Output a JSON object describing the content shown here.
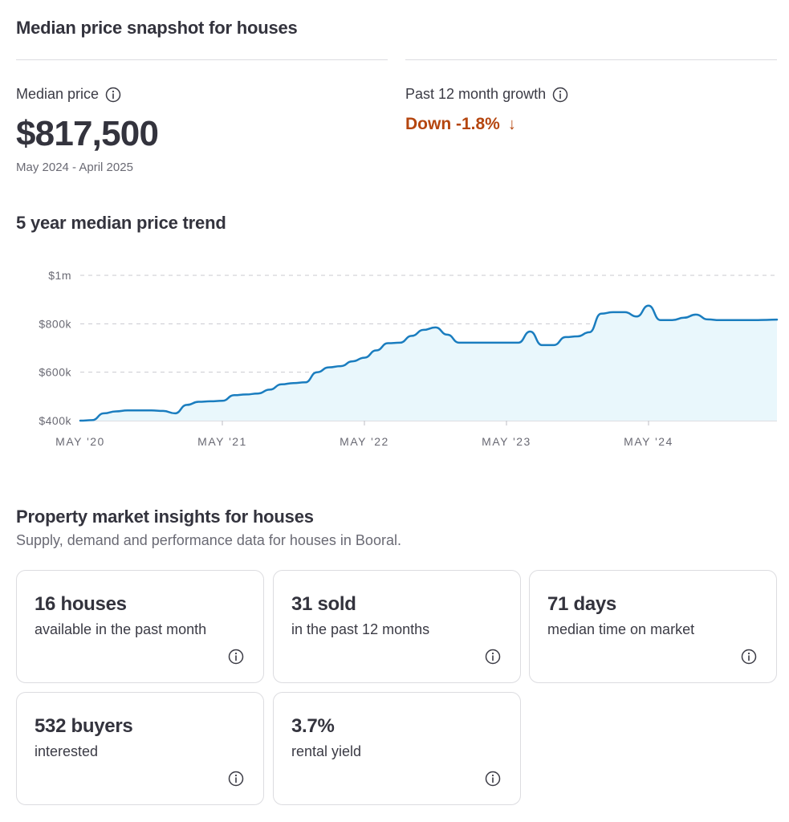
{
  "snapshot": {
    "title": "Median price snapshot for houses",
    "median_label": "Median price",
    "median_value": "$817,500",
    "median_period": "May 2024 - April 2025",
    "growth_label": "Past 12 month growth",
    "growth_value": "Down -1.8%",
    "growth_arrow": "↓",
    "growth_color": "#b5460f"
  },
  "trend": {
    "title": "5 year median price trend"
  },
  "chart_data": {
    "type": "area",
    "x_ticks": [
      "MAY '20",
      "MAY '21",
      "MAY '22",
      "MAY '23",
      "MAY '24"
    ],
    "y_ticks": [
      "$1m",
      "$800k",
      "$600k",
      "$400k"
    ],
    "y_tick_values": [
      1000000,
      800000,
      600000,
      400000
    ],
    "ylim": [
      400000,
      1000000
    ],
    "grid": true,
    "line_color": "#1a7dbf",
    "fill_color": "#e9f7fc",
    "series": [
      {
        "x": [
          "2020-05",
          "2020-06",
          "2020-07",
          "2020-08",
          "2020-09",
          "2020-10",
          "2020-11",
          "2020-12",
          "2021-01",
          "2021-02",
          "2021-03",
          "2021-04",
          "2021-05",
          "2021-06",
          "2021-07",
          "2021-08",
          "2021-09",
          "2021-10",
          "2021-11",
          "2021-12",
          "2022-01",
          "2022-02",
          "2022-03",
          "2022-04",
          "2022-05",
          "2022-06",
          "2022-07",
          "2022-08",
          "2022-09",
          "2022-10",
          "2022-11",
          "2022-12",
          "2023-01",
          "2023-02",
          "2023-03",
          "2023-04",
          "2023-05",
          "2023-06",
          "2023-07",
          "2023-08",
          "2023-09",
          "2023-10",
          "2023-11",
          "2023-12",
          "2024-01",
          "2024-02",
          "2024-03",
          "2024-04",
          "2024-05",
          "2024-06",
          "2024-07",
          "2024-08",
          "2024-09",
          "2024-10",
          "2024-11",
          "2024-12",
          "2025-01",
          "2025-02",
          "2025-03",
          "2025-04"
        ],
        "values": [
          400000,
          402000,
          430000,
          438000,
          442000,
          442000,
          442000,
          440000,
          430000,
          465000,
          478000,
          480000,
          482000,
          505000,
          508000,
          512000,
          528000,
          550000,
          555000,
          558000,
          600000,
          620000,
          625000,
          645000,
          660000,
          690000,
          720000,
          722000,
          750000,
          775000,
          785000,
          755000,
          722000,
          722000,
          722000,
          722000,
          722000,
          722000,
          768000,
          712000,
          712000,
          745000,
          748000,
          765000,
          842000,
          848000,
          848000,
          830000,
          875000,
          815000,
          815000,
          825000,
          838000,
          818000,
          815000,
          815000,
          815000,
          815000,
          816000,
          817500
        ]
      }
    ]
  },
  "insights": {
    "title": "Property market insights for houses",
    "subtitle": "Supply, demand and performance data for houses in Booral.",
    "cards": [
      {
        "value": "16 houses",
        "desc": "available in the past month"
      },
      {
        "value": "31 sold",
        "desc": "in the past 12 months"
      },
      {
        "value": "71 days",
        "desc": "median time on market"
      },
      {
        "value": "532 buyers",
        "desc": "interested"
      },
      {
        "value": "3.7%",
        "desc": "rental yield"
      }
    ]
  }
}
